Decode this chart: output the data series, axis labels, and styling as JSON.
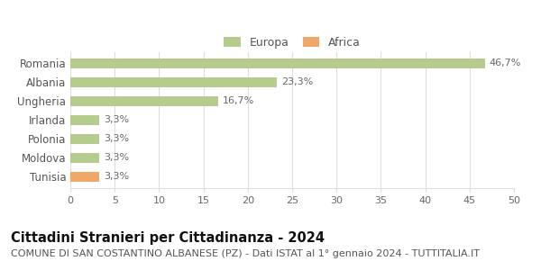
{
  "categories": [
    "Tunisia",
    "Moldova",
    "Polonia",
    "Irlanda",
    "Ungheria",
    "Albania",
    "Romania"
  ],
  "values": [
    3.3,
    3.3,
    3.3,
    3.3,
    16.7,
    23.3,
    46.7
  ],
  "labels": [
    "3,3%",
    "3,3%",
    "3,3%",
    "3,3%",
    "16,7%",
    "23,3%",
    "46,7%"
  ],
  "bar_colors": [
    "#f0a868",
    "#b5cc8e",
    "#b5cc8e",
    "#b5cc8e",
    "#b5cc8e",
    "#b5cc8e",
    "#b5cc8e"
  ],
  "europa_color": "#b5cc8e",
  "africa_color": "#f0a868",
  "xlim": [
    0,
    50
  ],
  "xticks": [
    0,
    5,
    10,
    15,
    20,
    25,
    30,
    35,
    40,
    45,
    50
  ],
  "title": "Cittadini Stranieri per Cittadinanza - 2024",
  "subtitle": "COMUNE DI SAN COSTANTINO ALBANESE (PZ) - Dati ISTAT al 1° gennaio 2024 - TUTTITALIA.IT",
  "legend_europa": "Europa",
  "legend_africa": "Africa",
  "background_color": "#ffffff",
  "grid_color": "#dddddd",
  "bar_height": 0.52,
  "label_fontsize": 8.0,
  "title_fontsize": 10.5,
  "subtitle_fontsize": 8.0,
  "ytick_fontsize": 8.5,
  "xtick_fontsize": 8.0
}
